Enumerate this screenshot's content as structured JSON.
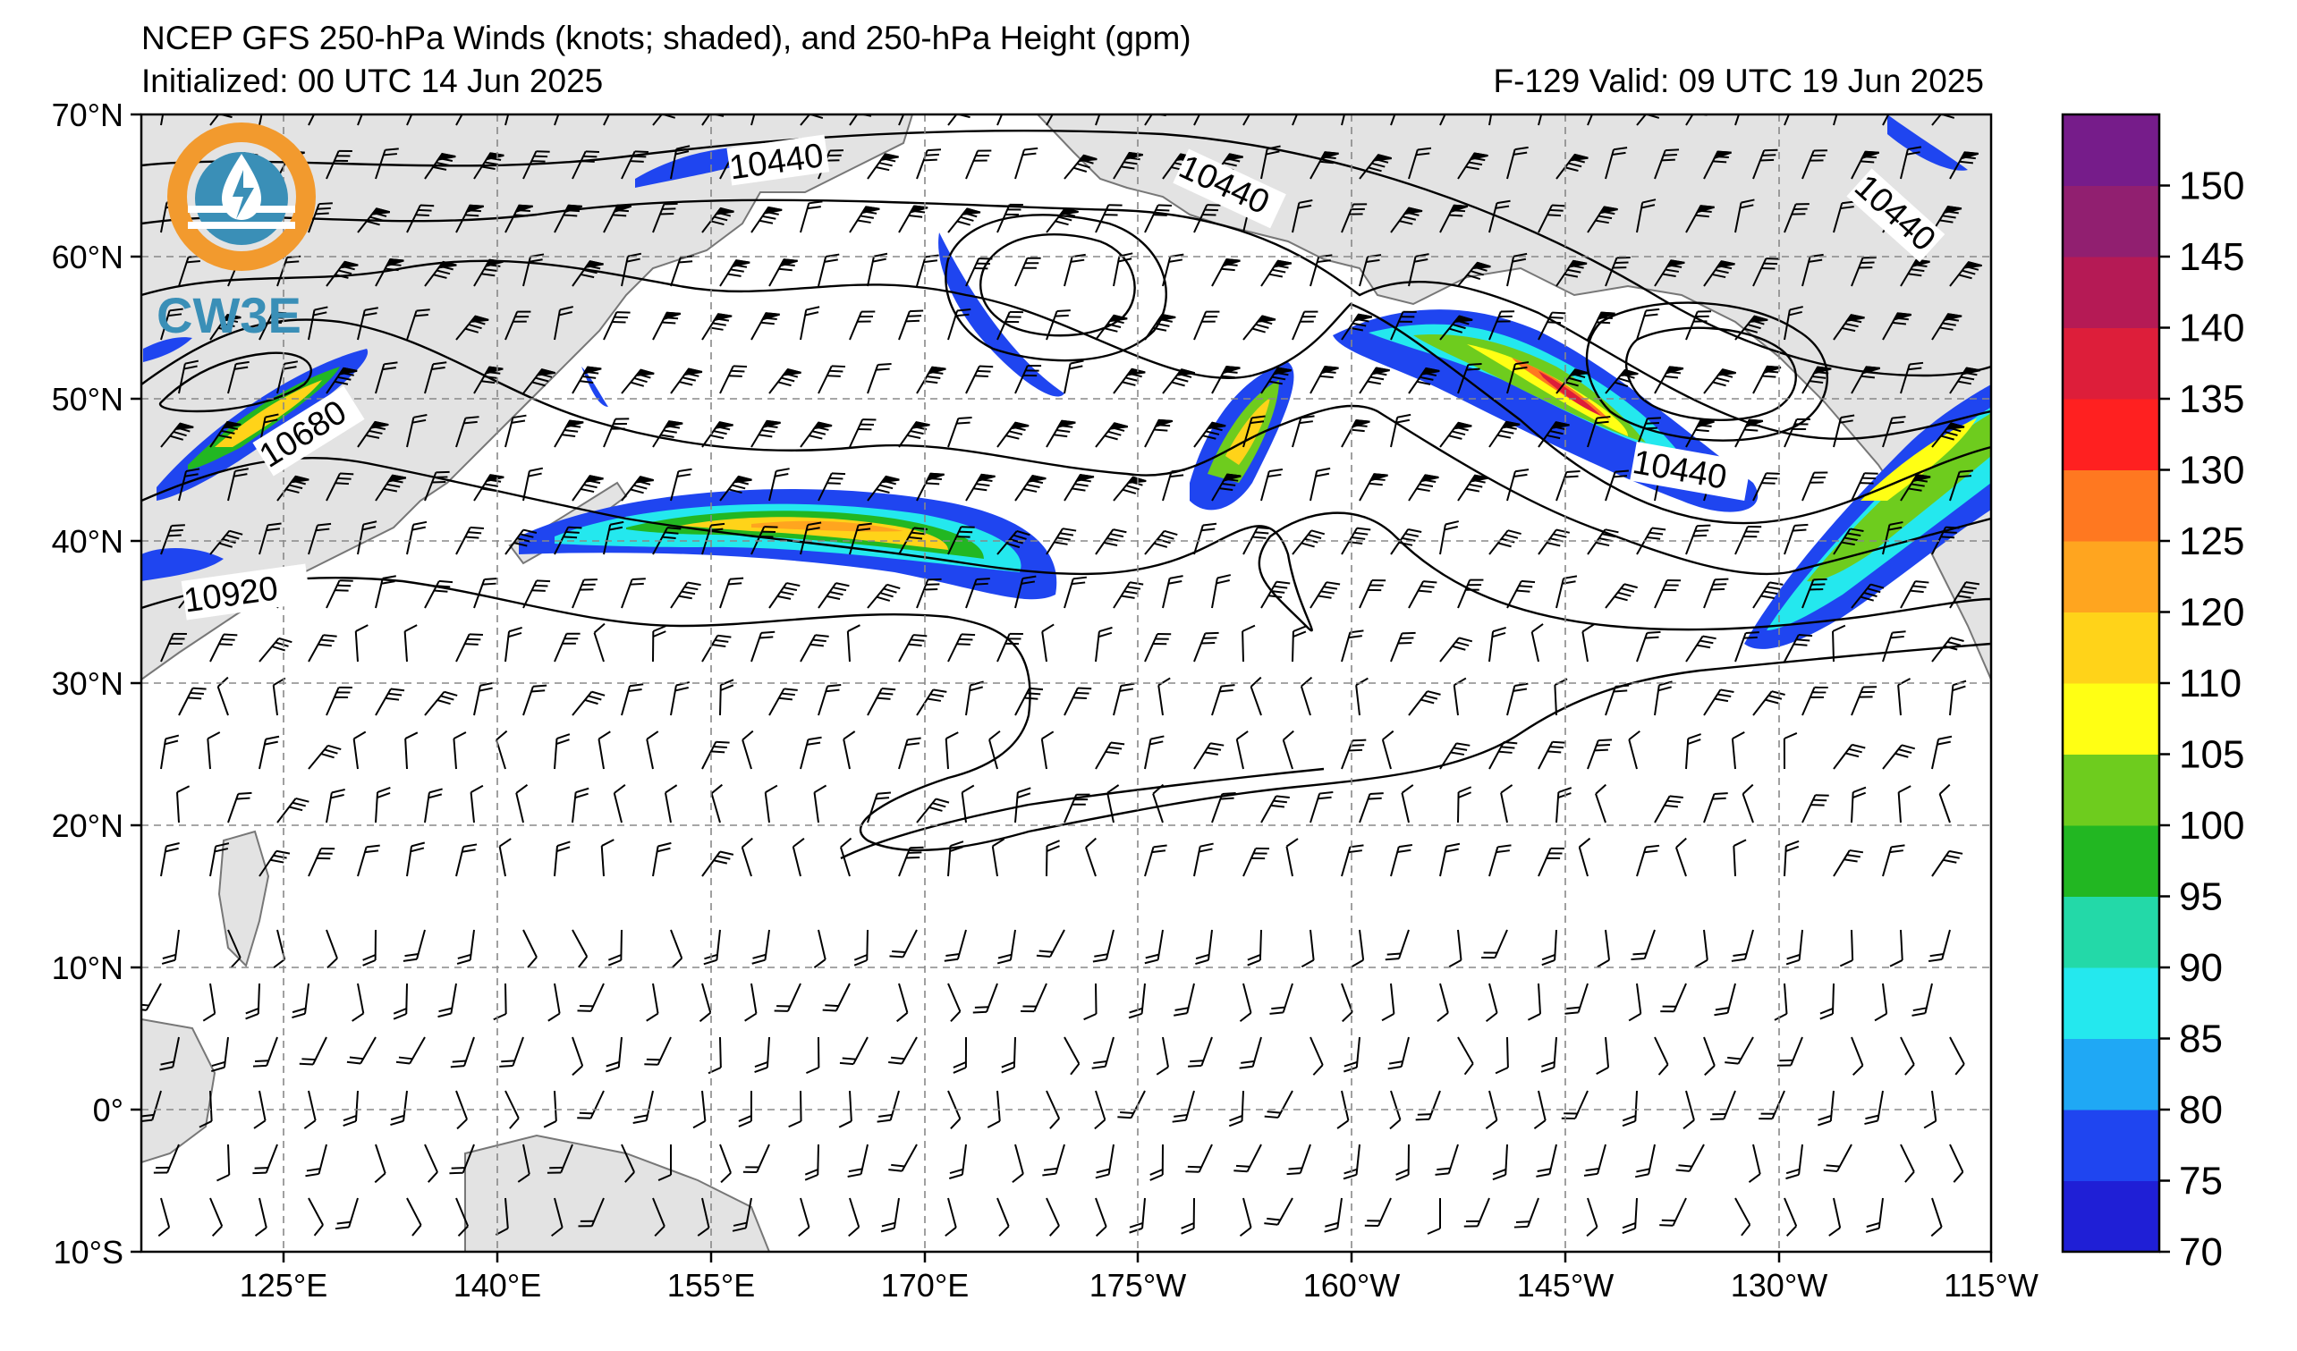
{
  "header": {
    "title": "NCEP GFS 250-hPa Winds (knots; shaded), and 250-hPa Height (gpm)",
    "initialized": "Initialized: 00 UTC 14 Jun 2025",
    "valid": "F-129  Valid: 09 UTC 19 Jun 2025"
  },
  "logo": {
    "text": "CW3E",
    "ring_color": "#f29a2e",
    "inner_color": "#3a8fb7"
  },
  "map": {
    "lat_labels": [
      "70°N",
      "60°N",
      "50°N",
      "40°N",
      "30°N",
      "20°N",
      "10°N",
      "0°",
      "10°S"
    ],
    "lon_labels": [
      "125°E",
      "140°E",
      "155°E",
      "170°E",
      "175°W",
      "160°W",
      "145°W",
      "130°W",
      "115°W"
    ],
    "land_color": "#e3e3e3",
    "coast_color": "#777777",
    "grid_color": "#888888"
  },
  "height_contours": {
    "labels": [
      "10440",
      "10440",
      "10440",
      "10440",
      "10680",
      "10920"
    ]
  },
  "colorbar": {
    "levels": [
      "70",
      "75",
      "80",
      "85",
      "90",
      "95",
      "100",
      "105",
      "110",
      "120",
      "125",
      "130",
      "135",
      "140",
      "145",
      "150"
    ],
    "colors": [
      "#1f1fd6",
      "#1f45f0",
      "#1fa8f5",
      "#24e8ee",
      "#23d9a8",
      "#22b722",
      "#6ecc1e",
      "#ffff14",
      "#ffd319",
      "#ffa51f",
      "#ff7820",
      "#ff2020",
      "#dd1e3a",
      "#b51a55",
      "#911f70",
      "#761c8a"
    ]
  }
}
